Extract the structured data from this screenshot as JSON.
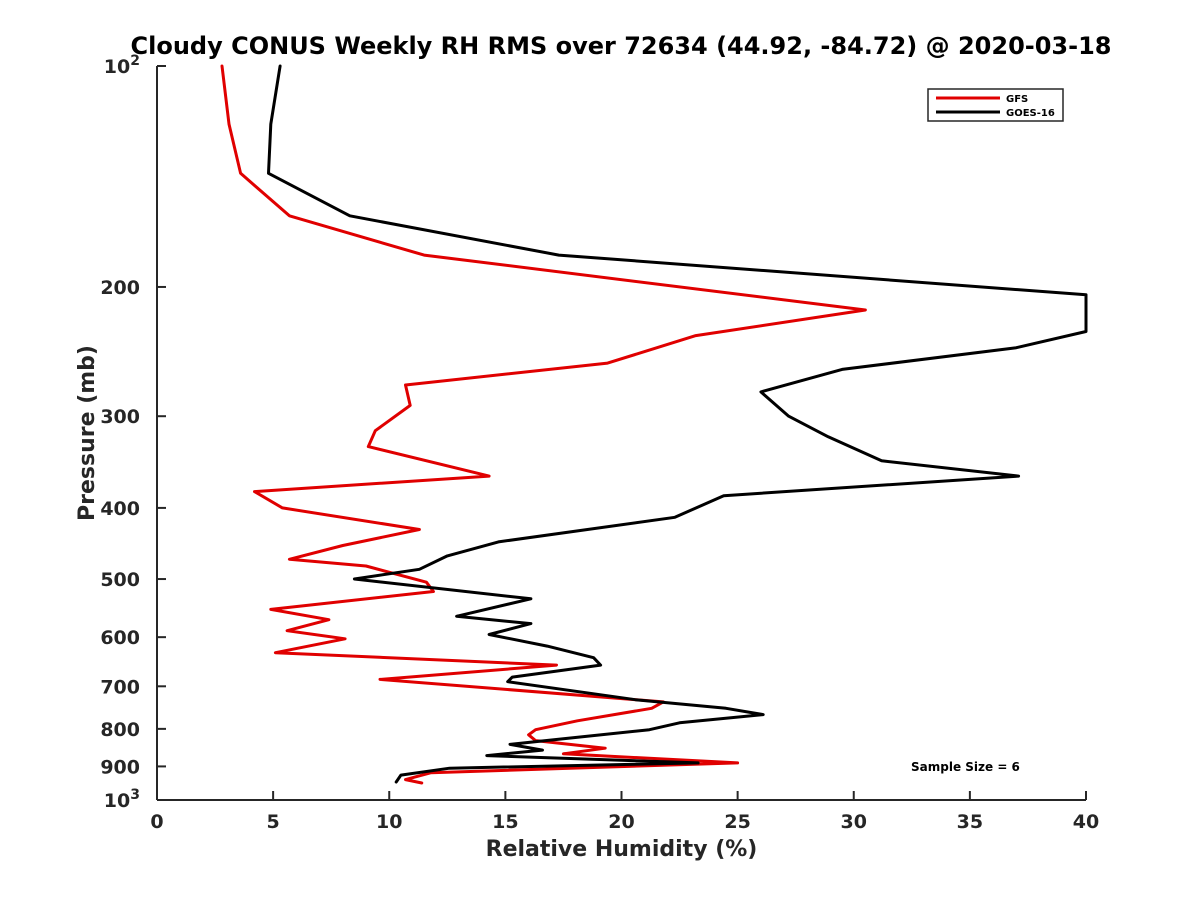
{
  "chart_data": {
    "type": "line",
    "title": "Cloudy CONUS Weekly RH RMS over 72634 (44.92, -84.72) @ 2020-03-18",
    "xlabel": "Relative Humidity (%)",
    "ylabel": "Pressure (mb)",
    "xlim": [
      0,
      40
    ],
    "ylim": [
      100,
      1000
    ],
    "y_scale": "log",
    "y_reversed": true,
    "x_ticks": [
      "0",
      "5",
      "10",
      "15",
      "20",
      "25",
      "30",
      "35",
      "40"
    ],
    "y_ticks": [
      {
        "value": 100,
        "label": "10",
        "sup": "2"
      },
      {
        "value": 200,
        "label": "200",
        "sup": ""
      },
      {
        "value": 300,
        "label": "300",
        "sup": ""
      },
      {
        "value": 400,
        "label": "400",
        "sup": ""
      },
      {
        "value": 500,
        "label": "500",
        "sup": ""
      },
      {
        "value": 600,
        "label": "600",
        "sup": ""
      },
      {
        "value": 700,
        "label": "700",
        "sup": ""
      },
      {
        "value": 800,
        "label": "800",
        "sup": ""
      },
      {
        "value": 900,
        "label": "900",
        "sup": ""
      },
      {
        "value": 1000,
        "label": "10",
        "sup": "3"
      }
    ],
    "grid": false,
    "legend_position": "top-right",
    "annotation": "Sample Size = 6",
    "series": [
      {
        "name": "GFS",
        "color": "#e00000",
        "points": [
          [
            2.8,
            100
          ],
          [
            3.1,
            120
          ],
          [
            3.6,
            140
          ],
          [
            5.7,
            160
          ],
          [
            11.5,
            181
          ],
          [
            30.5,
            215
          ],
          [
            23.2,
            233
          ],
          [
            19.4,
            254
          ],
          [
            10.7,
            272
          ],
          [
            10.9,
            290
          ],
          [
            9.4,
            314
          ],
          [
            9.1,
            330
          ],
          [
            14.3,
            362
          ],
          [
            4.2,
            380
          ],
          [
            5.4,
            400
          ],
          [
            11.3,
            428
          ],
          [
            8.0,
            450
          ],
          [
            5.7,
            470
          ],
          [
            9.0,
            480
          ],
          [
            11.6,
            505
          ],
          [
            11.9,
            520
          ],
          [
            4.9,
            550
          ],
          [
            7.4,
            568
          ],
          [
            5.6,
            588
          ],
          [
            8.1,
            603
          ],
          [
            5.1,
            630
          ],
          [
            17.2,
            655
          ],
          [
            9.6,
            685
          ],
          [
            21.8,
            735
          ],
          [
            21.3,
            750
          ],
          [
            18.1,
            780
          ],
          [
            16.3,
            802
          ],
          [
            16.0,
            815
          ],
          [
            16.3,
            830
          ],
          [
            19.3,
            850
          ],
          [
            17.5,
            865
          ],
          [
            25.0,
            890
          ],
          [
            11.8,
            918
          ],
          [
            10.7,
            938
          ],
          [
            11.4,
            948
          ]
        ]
      },
      {
        "name": "GOES-16",
        "color": "#000000",
        "points": [
          [
            5.3,
            100
          ],
          [
            4.9,
            120
          ],
          [
            4.8,
            140
          ],
          [
            8.3,
            160
          ],
          [
            17.3,
            181
          ],
          [
            40.0,
            205
          ],
          [
            40.0,
            230
          ],
          [
            37.0,
            242
          ],
          [
            29.5,
            259
          ],
          [
            26.0,
            278
          ],
          [
            27.2,
            300
          ],
          [
            28.9,
            320
          ],
          [
            31.2,
            345
          ],
          [
            37.1,
            362
          ],
          [
            24.4,
            385
          ],
          [
            22.3,
            412
          ],
          [
            14.7,
            445
          ],
          [
            12.5,
            465
          ],
          [
            11.3,
            485
          ],
          [
            8.5,
            500
          ],
          [
            16.1,
            532
          ],
          [
            12.9,
            562
          ],
          [
            16.1,
            575
          ],
          [
            14.3,
            595
          ],
          [
            16.8,
            617
          ],
          [
            18.8,
            640
          ],
          [
            19.1,
            655
          ],
          [
            15.3,
            680
          ],
          [
            15.1,
            690
          ],
          [
            20.6,
            730
          ],
          [
            24.5,
            750
          ],
          [
            26.1,
            765
          ],
          [
            22.5,
            785
          ],
          [
            21.2,
            802
          ],
          [
            17.5,
            825
          ],
          [
            15.2,
            840
          ],
          [
            16.6,
            855
          ],
          [
            14.2,
            870
          ],
          [
            23.3,
            890
          ],
          [
            12.6,
            905
          ],
          [
            10.5,
            925
          ],
          [
            10.3,
            945
          ]
        ]
      }
    ]
  }
}
